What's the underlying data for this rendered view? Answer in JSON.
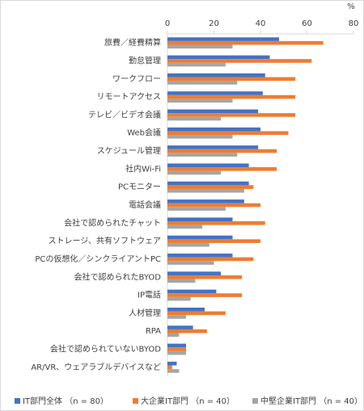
{
  "chart_data": {
    "type": "hbar",
    "xlabel": "%",
    "categories": [
      "旅費／経費精算",
      "勤怠管理",
      "ワークフロー",
      "リモートアクセス",
      "テレビ／ビデオ会議",
      "Web会議",
      "スケジュール管理",
      "社内Wi-Fi",
      "PCモニター",
      "電話会議",
      "会社で認められたチャット",
      "ストレージ、共有ソフトウェア",
      "PCの仮想化／シンクライアントPC",
      "会社で認められたBYOD",
      "IP電話",
      "人材管理",
      "RPA",
      "会社で認められていないBYOD",
      "AR/VR、ウェアラブルデバイスなど"
    ],
    "series": [
      {
        "name": "IT部門全体 （n = 80）",
        "color": "#4472c4",
        "values": [
          48,
          44,
          42,
          41,
          39,
          40,
          39,
          35,
          35,
          33,
          28,
          28,
          28,
          23,
          21,
          16,
          11,
          8,
          4
        ]
      },
      {
        "name": "大企業IT部門 （n = 40）",
        "color": "#ed7d31",
        "values": [
          67,
          62,
          55,
          55,
          55,
          52,
          47,
          47,
          37,
          40,
          42,
          40,
          37,
          32,
          32,
          25,
          17,
          8,
          2
        ]
      },
      {
        "name": "中堅企業IT部門 （n = 40）",
        "color": "#a5a5a5",
        "values": [
          28,
          25,
          30,
          28,
          23,
          28,
          30,
          23,
          33,
          25,
          15,
          18,
          20,
          12,
          10,
          8,
          5,
          8,
          5
        ]
      }
    ],
    "xlim": [
      0,
      80
    ],
    "xticks": [
      0,
      20,
      40,
      60,
      80
    ]
  }
}
